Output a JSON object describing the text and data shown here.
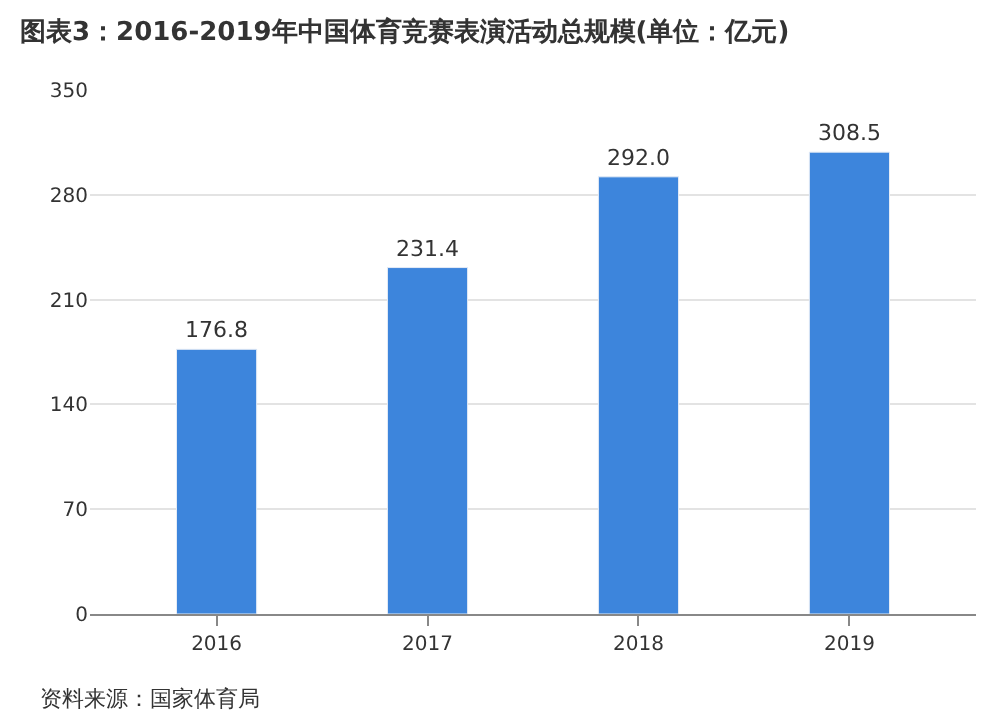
{
  "chart_data": {
    "type": "bar",
    "title": "图表3：2016-2019年中国体育竞赛表演活动总规模(单位：亿元)",
    "categories": [
      "2016",
      "2017",
      "2018",
      "2019"
    ],
    "values": [
      176.8,
      231.4,
      292.0,
      308.5
    ],
    "value_labels": [
      "176.8",
      "231.4",
      "292.0",
      "308.5"
    ],
    "color": "#3d85dc",
    "ylim": [
      0,
      350
    ],
    "yticks": [
      0,
      70,
      140,
      210,
      280,
      350
    ],
    "grid": "y",
    "annotations": [
      "资料来源：国家体育局"
    ]
  }
}
